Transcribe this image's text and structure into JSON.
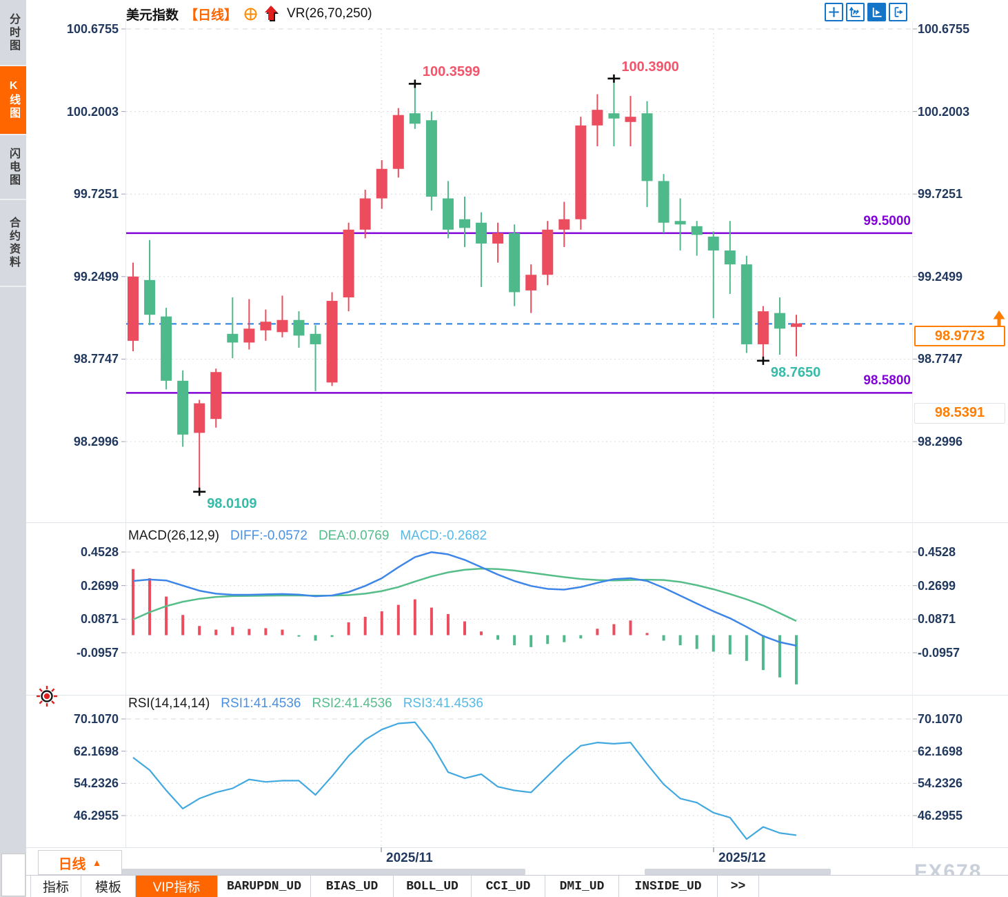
{
  "header": {
    "symbol": "美元指数",
    "period_tag": "【日线】",
    "vr_label": "VR(26,70,250)",
    "icons": [
      "target-icon",
      "red-up-arrow-icon"
    ]
  },
  "toolbar_icons": [
    "crosshair-move-icon",
    "axis-fit-icon",
    "axis-play-icon",
    "axis-shift-icon"
  ],
  "sidebar": {
    "items": [
      {
        "label": "分时图",
        "active": false
      },
      {
        "label": "K线图",
        "active": true
      },
      {
        "label": "闪电图",
        "active": false
      },
      {
        "label": "合约资料",
        "active": false
      }
    ]
  },
  "chart_data": [
    {
      "type": "candlestick",
      "title": "美元指数 日线",
      "y_ticks": [
        "100.6755",
        "100.2003",
        "99.7251",
        "99.2499",
        "98.7747",
        "98.2996"
      ],
      "ylim": [
        98.2996,
        100.6755
      ],
      "x_labels": [
        "2025/11",
        "2025/12"
      ],
      "up_color": "#eb4d5e",
      "down_color": "#4eb98a",
      "candles": [
        [
          98.88,
          99.33,
          98.82,
          99.25
        ],
        [
          99.23,
          99.46,
          98.97,
          99.03
        ],
        [
          99.02,
          99.07,
          98.6,
          98.65
        ],
        [
          98.65,
          98.71,
          98.27,
          98.34
        ],
        [
          98.35,
          98.54,
          98.0109,
          98.52
        ],
        [
          98.43,
          98.72,
          98.38,
          98.7
        ],
        [
          98.92,
          99.13,
          98.78,
          98.87
        ],
        [
          98.87,
          99.12,
          98.83,
          98.95
        ],
        [
          98.94,
          99.06,
          98.88,
          98.99
        ],
        [
          98.93,
          99.14,
          98.9,
          99.0
        ],
        [
          99.0,
          99.05,
          98.84,
          98.91
        ],
        [
          98.92,
          98.97,
          98.59,
          98.86
        ],
        [
          98.64,
          99.16,
          98.62,
          99.11
        ],
        [
          99.13,
          99.56,
          99.05,
          99.52
        ],
        [
          99.52,
          99.75,
          99.47,
          99.7
        ],
        [
          99.7,
          99.92,
          99.64,
          99.87
        ],
        [
          99.87,
          100.22,
          99.82,
          100.18
        ],
        [
          100.19,
          100.3599,
          100.1,
          100.13
        ],
        [
          100.15,
          100.2,
          99.63,
          99.71
        ],
        [
          99.7,
          99.8,
          99.47,
          99.52
        ],
        [
          99.58,
          99.71,
          99.42,
          99.53
        ],
        [
          99.56,
          99.62,
          99.19,
          99.44
        ],
        [
          99.44,
          99.56,
          99.33,
          99.5
        ],
        [
          99.5,
          99.55,
          99.08,
          99.16
        ],
        [
          99.17,
          99.32,
          99.04,
          99.26
        ],
        [
          99.26,
          99.57,
          99.2,
          99.52
        ],
        [
          99.52,
          99.68,
          99.42,
          99.58
        ],
        [
          99.58,
          100.17,
          99.52,
          100.12
        ],
        [
          100.12,
          100.3,
          100.0,
          100.21
        ],
        [
          100.19,
          100.39,
          100.0,
          100.16
        ],
        [
          100.14,
          100.29,
          100.0,
          100.17
        ],
        [
          100.19,
          100.26,
          99.65,
          99.8
        ],
        [
          99.8,
          99.84,
          99.5,
          99.56
        ],
        [
          99.57,
          99.7,
          99.4,
          99.55
        ],
        [
          99.54,
          99.57,
          99.37,
          99.49
        ],
        [
          99.48,
          99.51,
          99.01,
          99.4
        ],
        [
          99.4,
          99.57,
          99.15,
          99.32
        ],
        [
          99.32,
          99.37,
          98.81,
          98.86
        ],
        [
          98.86,
          99.08,
          98.765,
          99.05
        ],
        [
          99.04,
          99.13,
          98.8,
          98.95
        ],
        [
          98.96,
          99.03,
          98.79,
          98.98
        ]
      ],
      "overlays": {
        "resistance": {
          "label": "99.5000",
          "value": 99.5,
          "color": "#8103d8"
        },
        "support": {
          "label": "98.5800",
          "value": 98.58,
          "color": "#8103d8"
        },
        "last_price": {
          "label": "98.9773",
          "value": 98.9773,
          "color": "#ff7d00"
        },
        "offset_price": {
          "label": "98.5391",
          "value": 98.5391,
          "color": "#ff7d00"
        }
      },
      "annotations": [
        {
          "text": "100.3599",
          "value": 100.3599,
          "index": 17,
          "kind": "high",
          "color": "#f2556a"
        },
        {
          "text": "100.3900",
          "value": 100.39,
          "index": 29,
          "kind": "high",
          "color": "#f2556a"
        },
        {
          "text": "98.0109",
          "value": 98.0109,
          "index": 4,
          "kind": "low",
          "color": "#35bba8"
        },
        {
          "text": "98.7650",
          "value": 98.765,
          "index": 38,
          "kind": "low",
          "color": "#35bba8"
        }
      ]
    },
    {
      "type": "macd",
      "params": "MACD(26,12,9)",
      "labels": {
        "diff": "DIFF:-0.0572",
        "dea": "DEA:0.0769",
        "macd": "MACD:-0.2682"
      },
      "y_ticks": [
        "0.4528",
        "0.2699",
        "0.0871",
        "-0.0957"
      ],
      "diff_color": "#3d86e8",
      "dea_color": "#55bd88",
      "histogram": [
        0.36,
        0.31,
        0.21,
        0.11,
        0.05,
        0.03,
        0.045,
        0.034,
        0.038,
        0.03,
        -0.008,
        -0.03,
        -0.01,
        0.07,
        0.1,
        0.13,
        0.165,
        0.195,
        0.15,
        0.115,
        0.075,
        0.02,
        -0.025,
        -0.055,
        -0.065,
        -0.048,
        -0.038,
        -0.018,
        0.035,
        0.06,
        0.08,
        0.012,
        -0.03,
        -0.055,
        -0.075,
        -0.09,
        -0.105,
        -0.14,
        -0.19,
        -0.23,
        -0.268
      ],
      "diff": [
        0.295,
        0.303,
        0.298,
        0.27,
        0.242,
        0.226,
        0.22,
        0.22,
        0.222,
        0.224,
        0.221,
        0.212,
        0.216,
        0.235,
        0.268,
        0.31,
        0.37,
        0.425,
        0.452,
        0.44,
        0.41,
        0.37,
        0.33,
        0.295,
        0.268,
        0.252,
        0.248,
        0.262,
        0.285,
        0.305,
        0.31,
        0.295,
        0.258,
        0.215,
        0.172,
        0.13,
        0.092,
        0.045,
        -0.005,
        -0.038,
        -0.0572
      ],
      "dea": [
        0.085,
        0.125,
        0.158,
        0.182,
        0.198,
        0.208,
        0.213,
        0.214,
        0.215,
        0.216,
        0.216,
        0.215,
        0.215,
        0.218,
        0.226,
        0.24,
        0.262,
        0.292,
        0.32,
        0.342,
        0.356,
        0.362,
        0.36,
        0.352,
        0.34,
        0.328,
        0.316,
        0.306,
        0.3,
        0.298,
        0.3,
        0.302,
        0.3,
        0.29,
        0.272,
        0.25,
        0.224,
        0.195,
        0.162,
        0.12,
        0.0769
      ]
    },
    {
      "type": "line",
      "params": "RSI(14,14,14)",
      "labels": {
        "r1": "RSI1:41.4536",
        "r2": "RSI2:41.4536",
        "r3": "RSI3:41.4536"
      },
      "y_ticks": [
        "70.1070",
        "62.1698",
        "54.2326",
        "46.2955"
      ],
      "line_color": "#41a8e0",
      "rsi": [
        60.6,
        57.5,
        52.5,
        48.0,
        50.5,
        52.0,
        53.0,
        55.2,
        54.6,
        54.9,
        54.9,
        51.4,
        56.0,
        61.0,
        65.0,
        67.5,
        69.0,
        69.3,
        64.0,
        57.0,
        55.5,
        56.5,
        53.4,
        52.5,
        52.0,
        56.0,
        60.0,
        63.5,
        64.3,
        64.0,
        64.3,
        59.0,
        54.0,
        50.5,
        49.5,
        47.0,
        45.8,
        40.5,
        43.5,
        42.0,
        41.4536
      ]
    }
  ],
  "x_axis": {
    "labels": [
      "2025/11",
      "2025/12"
    ]
  },
  "period_button": {
    "label": "日线",
    "arrow": "▲"
  },
  "tabs": [
    {
      "label": "指标",
      "active": false,
      "mono": false
    },
    {
      "label": "模板",
      "active": false,
      "mono": false
    },
    {
      "label": "VIP指标",
      "active": true,
      "mono": false
    },
    {
      "label": "BARUPDN_UD",
      "active": false,
      "mono": true
    },
    {
      "label": "BIAS_UD",
      "active": false,
      "mono": true
    },
    {
      "label": "BOLL_UD",
      "active": false,
      "mono": true
    },
    {
      "label": "CCI_UD",
      "active": false,
      "mono": true
    },
    {
      "label": "DMI_UD",
      "active": false,
      "mono": true
    },
    {
      "label": "INSIDE_UD",
      "active": false,
      "mono": true
    },
    {
      "label": ">>",
      "active": false,
      "mono": true
    }
  ],
  "watermark": "FX678",
  "colors": {
    "accent_orange": "#ff6600",
    "up_red": "#eb4d5e",
    "down_green": "#4eb98a",
    "axis_text": "#21395e",
    "purple_line": "#8103d8",
    "dashed_blue": "#1e7fe8",
    "icon_blue": "#1374c8",
    "teal_annotation": "#35bba8",
    "red_annotation": "#f2556a"
  }
}
